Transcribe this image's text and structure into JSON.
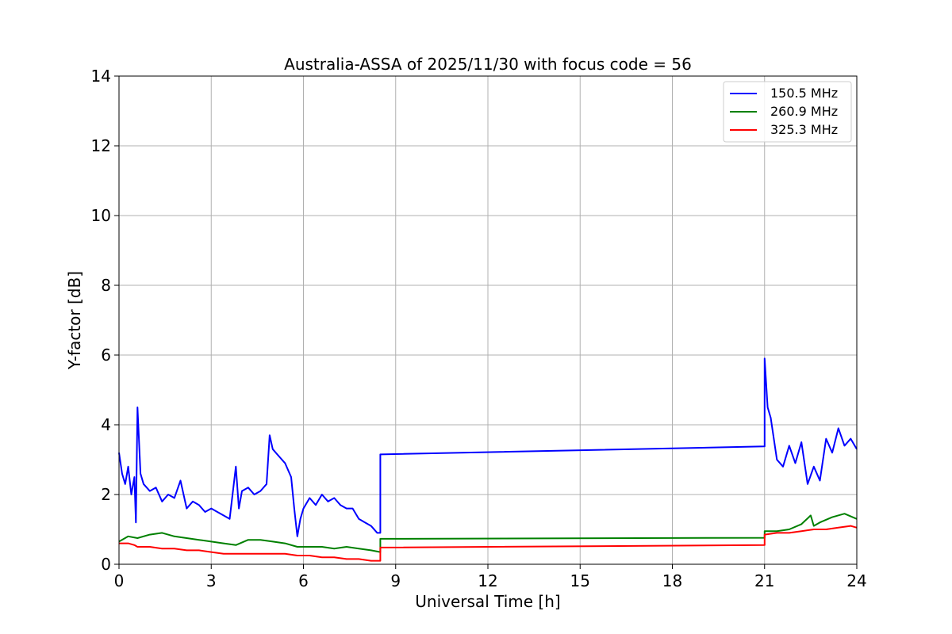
{
  "chart_data": {
    "type": "line",
    "title": "Australia-ASSA of 2025/11/30 with focus code = 56",
    "xlabel": "Universal Time [h]",
    "ylabel": "Y-factor [dB]",
    "xlim": [
      0,
      24
    ],
    "ylim": [
      0,
      14
    ],
    "xticks": [
      "0",
      "3",
      "6",
      "9",
      "12",
      "15",
      "18",
      "21",
      "24"
    ],
    "xtick_values": [
      0,
      3,
      6,
      9,
      12,
      15,
      18,
      21,
      24
    ],
    "yticks": [
      "0",
      "2",
      "4",
      "6",
      "8",
      "10",
      "12",
      "14"
    ],
    "ytick_values": [
      0,
      2,
      4,
      6,
      8,
      10,
      12,
      14
    ],
    "grid": true,
    "legend_position": "top-right",
    "series": [
      {
        "name": "150.5 MHz",
        "color": "#0000ff",
        "x": [
          0,
          0.1,
          0.2,
          0.3,
          0.4,
          0.5,
          0.55,
          0.6,
          0.7,
          0.8,
          1.0,
          1.2,
          1.4,
          1.6,
          1.8,
          2.0,
          2.2,
          2.4,
          2.6,
          2.8,
          3.0,
          3.2,
          3.4,
          3.6,
          3.8,
          3.9,
          4.0,
          4.2,
          4.4,
          4.6,
          4.8,
          4.9,
          5.0,
          5.2,
          5.4,
          5.6,
          5.7,
          5.8,
          5.9,
          6.0,
          6.2,
          6.4,
          6.6,
          6.8,
          7.0,
          7.2,
          7.4,
          7.6,
          7.8,
          8.0,
          8.2,
          8.4,
          8.5,
          8.5,
          21.0,
          21.0,
          21.1,
          21.2,
          21.4,
          21.6,
          21.8,
          22.0,
          22.2,
          22.4,
          22.6,
          22.8,
          23.0,
          23.2,
          23.4,
          23.6,
          23.8,
          24.0
        ],
        "values": [
          3.2,
          2.6,
          2.3,
          2.8,
          2.0,
          2.5,
          1.2,
          4.5,
          2.6,
          2.3,
          2.1,
          2.2,
          1.8,
          2.0,
          1.9,
          2.4,
          1.6,
          1.8,
          1.7,
          1.5,
          1.6,
          1.5,
          1.4,
          1.3,
          2.8,
          1.6,
          2.1,
          2.2,
          2.0,
          2.1,
          2.3,
          3.7,
          3.3,
          3.1,
          2.9,
          2.5,
          1.6,
          0.8,
          1.3,
          1.6,
          1.9,
          1.7,
          2.0,
          1.8,
          1.9,
          1.7,
          1.6,
          1.6,
          1.3,
          1.2,
          1.1,
          0.9,
          0.9,
          3.15,
          3.38,
          5.9,
          4.5,
          4.2,
          3.0,
          2.8,
          3.4,
          2.9,
          3.5,
          2.3,
          2.8,
          2.4,
          3.6,
          3.2,
          3.9,
          3.4,
          3.6,
          3.3
        ]
      },
      {
        "name": "260.9 MHz",
        "color": "#008000",
        "x": [
          0,
          0.3,
          0.6,
          1.0,
          1.4,
          1.8,
          2.2,
          2.6,
          3.0,
          3.4,
          3.8,
          4.2,
          4.6,
          5.0,
          5.4,
          5.8,
          6.2,
          6.6,
          7.0,
          7.4,
          7.8,
          8.2,
          8.5,
          8.5,
          21.0,
          21.0,
          21.4,
          21.8,
          22.2,
          22.5,
          22.6,
          22.8,
          23.2,
          23.6,
          24.0
        ],
        "values": [
          0.65,
          0.8,
          0.75,
          0.85,
          0.9,
          0.8,
          0.75,
          0.7,
          0.65,
          0.6,
          0.55,
          0.7,
          0.7,
          0.65,
          0.6,
          0.5,
          0.5,
          0.5,
          0.45,
          0.5,
          0.45,
          0.4,
          0.35,
          0.73,
          0.76,
          0.95,
          0.95,
          1.0,
          1.15,
          1.4,
          1.1,
          1.2,
          1.35,
          1.45,
          1.3
        ]
      },
      {
        "name": "325.3 MHz",
        "color": "#ff0000",
        "x": [
          0,
          0.3,
          0.5,
          0.6,
          1.0,
          1.4,
          1.8,
          2.2,
          2.6,
          3.0,
          3.4,
          3.8,
          4.2,
          4.6,
          5.0,
          5.4,
          5.8,
          6.2,
          6.6,
          7.0,
          7.4,
          7.8,
          8.2,
          8.5,
          8.5,
          21.0,
          21.0,
          21.4,
          21.8,
          22.2,
          22.6,
          23.0,
          23.4,
          23.8,
          24.0
        ],
        "values": [
          0.6,
          0.6,
          0.55,
          0.5,
          0.5,
          0.45,
          0.45,
          0.4,
          0.4,
          0.35,
          0.3,
          0.3,
          0.3,
          0.3,
          0.3,
          0.3,
          0.25,
          0.25,
          0.2,
          0.2,
          0.15,
          0.15,
          0.1,
          0.1,
          0.48,
          0.55,
          0.85,
          0.9,
          0.9,
          0.95,
          1.0,
          1.0,
          1.05,
          1.1,
          1.05
        ]
      }
    ]
  }
}
